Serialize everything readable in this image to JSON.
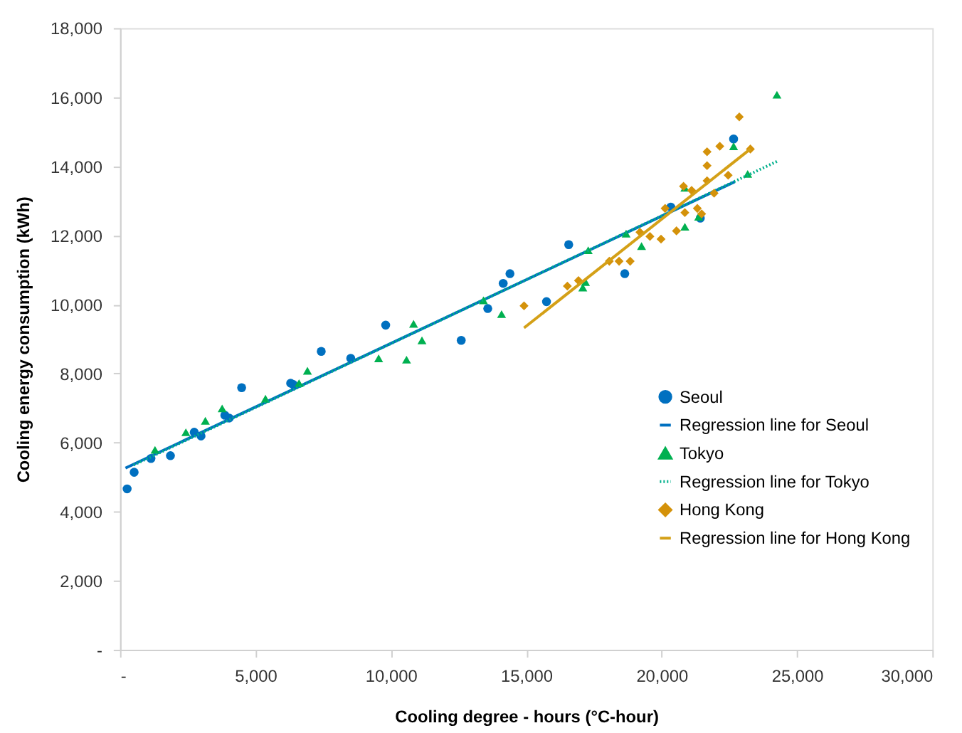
{
  "chart_data": {
    "type": "scatter",
    "xlabel": "Cooling degree - hours (°C-hour)",
    "ylabel": "Cooling energy consumption (kWh)",
    "xlim": [
      0,
      30000
    ],
    "xticks": [
      {
        "value": 0,
        "label": "-"
      },
      {
        "value": 5000,
        "label": "5,000"
      },
      {
        "value": 10000,
        "label": "10,000"
      },
      {
        "value": 15000,
        "label": "15,000"
      },
      {
        "value": 20000,
        "label": "20,000"
      },
      {
        "value": 25000,
        "label": "25,000"
      },
      {
        "value": 30000,
        "label": "30,000"
      }
    ],
    "ylim": [
      0,
      18000
    ],
    "yticks": [
      {
        "value": 0,
        "label": "-"
      },
      {
        "value": 2000,
        "label": "2,000"
      },
      {
        "value": 4000,
        "label": "4,000"
      },
      {
        "value": 6000,
        "label": "6,000"
      },
      {
        "value": 8000,
        "label": "8,000"
      },
      {
        "value": 10000,
        "label": "10,000"
      },
      {
        "value": 12000,
        "label": "12,000"
      },
      {
        "value": 14000,
        "label": "14,000"
      },
      {
        "value": 16000,
        "label": "16,000"
      },
      {
        "value": 18000,
        "label": "18,000"
      }
    ],
    "grid": false,
    "legend": "right",
    "series": [
      {
        "name": "Seoul",
        "marker": "circle",
        "color": "#0070c0",
        "x": [
          260,
          520,
          1140,
          1860,
          2740,
          2990,
          3870,
          4030,
          4490,
          6300,
          6400,
          7430,
          8520,
          9810,
          12600,
          13580,
          14150,
          14400,
          15750,
          16570,
          18640,
          20340,
          21430,
          22660
        ],
        "values": [
          4660,
          5140,
          5540,
          5620,
          6300,
          6190,
          6790,
          6710,
          7590,
          7720,
          7680,
          8640,
          8440,
          9400,
          8960,
          9880,
          10610,
          10890,
          10080,
          11730,
          10890,
          12820,
          12500,
          14790
        ]
      },
      {
        "name": "Regression line for Seoul",
        "type": "line",
        "marker": "none",
        "line_style": "solid",
        "color": "#0070c0",
        "x": [
          200,
          22700
        ],
        "values": [
          5260,
          13550
        ]
      },
      {
        "name": "Tokyo",
        "marker": "triangle",
        "color": "#00b050",
        "x": [
          1290,
          2430,
          3150,
          3770,
          5370,
          6610,
          6920,
          9550,
          10580,
          10840,
          11150,
          13420,
          14090,
          17190,
          17090,
          17290,
          18690,
          19260,
          20860,
          20860,
          21370,
          22660,
          23180,
          24260
        ],
        "values": [
          5790,
          6300,
          6630,
          6990,
          7270,
          7720,
          8080,
          8440,
          8400,
          9440,
          8960,
          10120,
          9720,
          10650,
          10490,
          11570,
          12050,
          11690,
          12250,
          13380,
          12540,
          14580,
          13780,
          16070
        ]
      },
      {
        "name": "Regression line for Tokyo",
        "type": "line",
        "marker": "none",
        "line_style": "dotted",
        "color": "#00b08c",
        "x": [
          500,
          24260
        ],
        "values": [
          5350,
          14140
        ]
      },
      {
        "name": "Hong Kong",
        "marker": "diamond",
        "color": "#d4920a",
        "x": [
          14920,
          16520,
          16930,
          18070,
          18430,
          18840,
          19200,
          19570,
          19980,
          20130,
          20550,
          20860,
          20810,
          21110,
          21320,
          21480,
          21680,
          21680,
          21680,
          21940,
          22150,
          22460,
          22870,
          23280
        ],
        "values": [
          9960,
          10530,
          10690,
          11250,
          11250,
          11250,
          12090,
          11970,
          11890,
          12780,
          12130,
          12660,
          13420,
          13300,
          12780,
          12620,
          13580,
          14020,
          14420,
          13220,
          14580,
          13740,
          15430,
          14500
        ]
      },
      {
        "name": "Regression line for  Hong Kong",
        "type": "line",
        "marker": "none",
        "line_style": "solid",
        "color": "#d4a017",
        "x": [
          14920,
          23280
        ],
        "values": [
          9320,
          14500
        ]
      }
    ]
  }
}
